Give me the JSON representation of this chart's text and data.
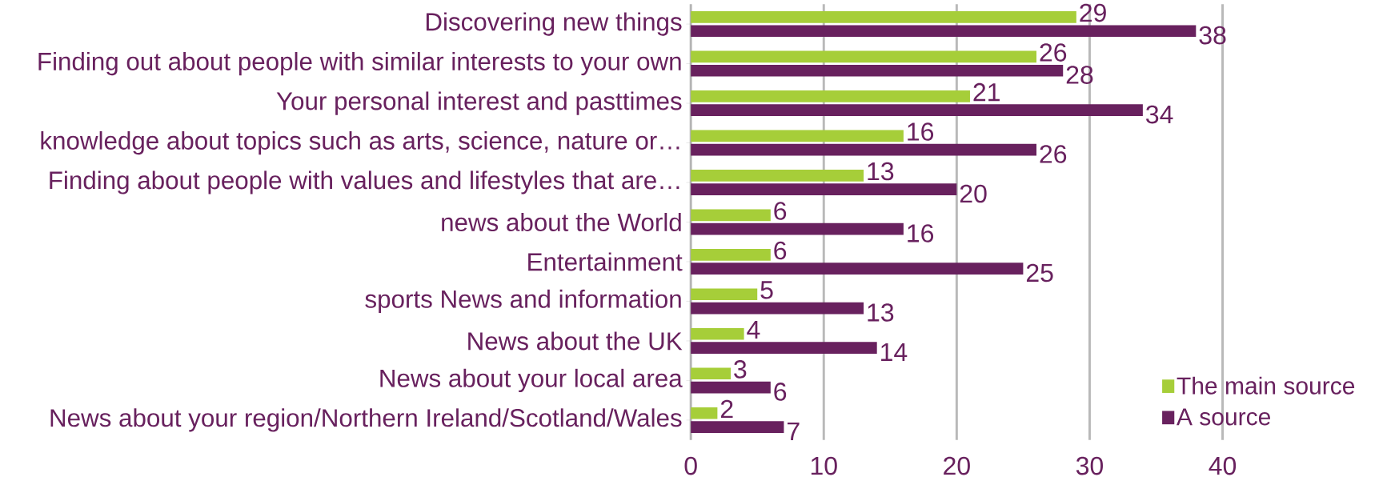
{
  "chart_data": {
    "type": "bar",
    "orientation": "horizontal",
    "categories": [
      "Discovering new things",
      "Finding out about people with similar interests to your own",
      "Your personal interest and pasttimes",
      "knowledge about topics such as arts, science, nature or…",
      "Finding about people with values and lifestyles that are…",
      "news about the World",
      "Entertainment",
      "sports News and information",
      "News about the UK",
      "News about your local area",
      "News about your region/Northern Ireland/Scotland/Wales"
    ],
    "series": [
      {
        "name": "The main source",
        "color": "#a6ce39",
        "values": [
          29,
          26,
          21,
          16,
          13,
          6,
          6,
          5,
          4,
          3,
          2
        ]
      },
      {
        "name": "A source",
        "color": "#68215e",
        "values": [
          38,
          28,
          34,
          26,
          20,
          16,
          25,
          13,
          14,
          6,
          7
        ]
      }
    ],
    "xlim": [
      0,
      40
    ],
    "xticks": [
      0,
      10,
      20,
      30,
      40
    ],
    "grid": "x",
    "legend": "bottom right",
    "data_labels": true
  }
}
